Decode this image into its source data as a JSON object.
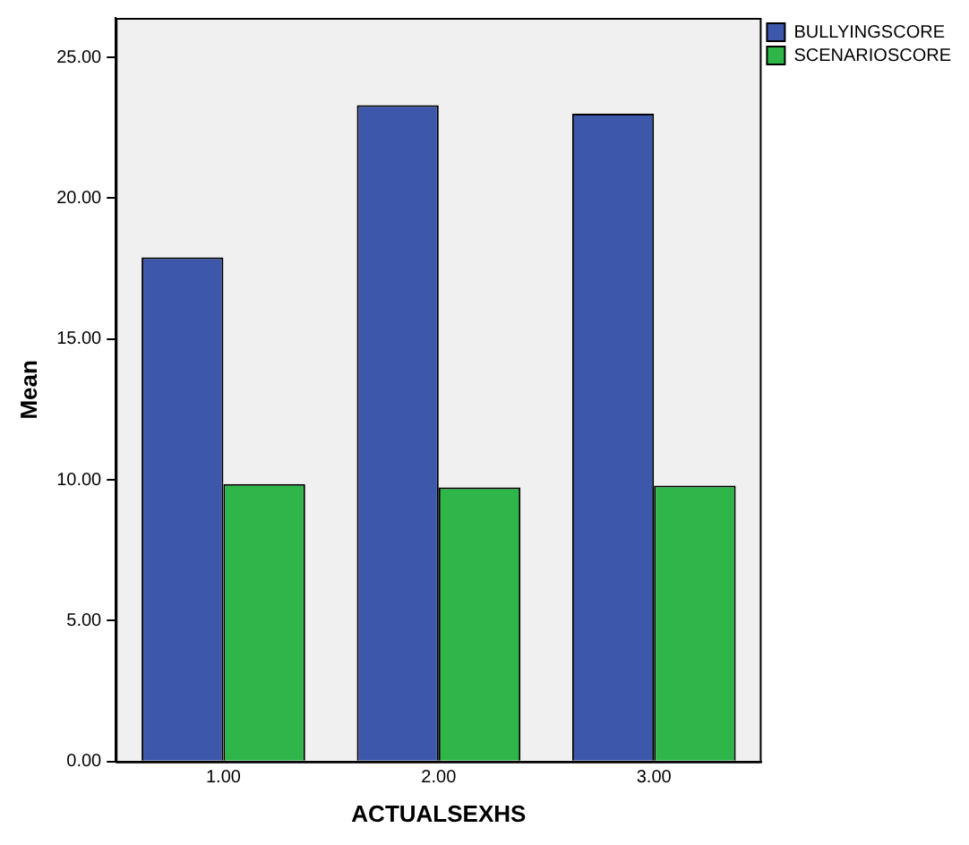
{
  "chart_data": {
    "type": "bar",
    "xlabel": "ACTUALSEXHS",
    "ylabel": "Mean",
    "categories": [
      "1.00",
      "2.00",
      "3.00"
    ],
    "series": [
      {
        "name": "BULLYINGSCORE",
        "color": "#3d57aa",
        "values": [
          17.9,
          23.3,
          23.0
        ]
      },
      {
        "name": "SCENARIOSCORE",
        "color": "#2fb648",
        "values": [
          9.85,
          9.73,
          9.8
        ]
      }
    ],
    "ylim": [
      0,
      26.4
    ],
    "yticks": [
      {
        "value": 0,
        "label": "0.00"
      },
      {
        "value": 5,
        "label": "5.00"
      },
      {
        "value": 10,
        "label": "10.00"
      },
      {
        "value": 15,
        "label": "15.00"
      },
      {
        "value": 20,
        "label": "20.00"
      },
      {
        "value": 25,
        "label": "25.00"
      }
    ],
    "grid": false,
    "legend": "top right"
  }
}
